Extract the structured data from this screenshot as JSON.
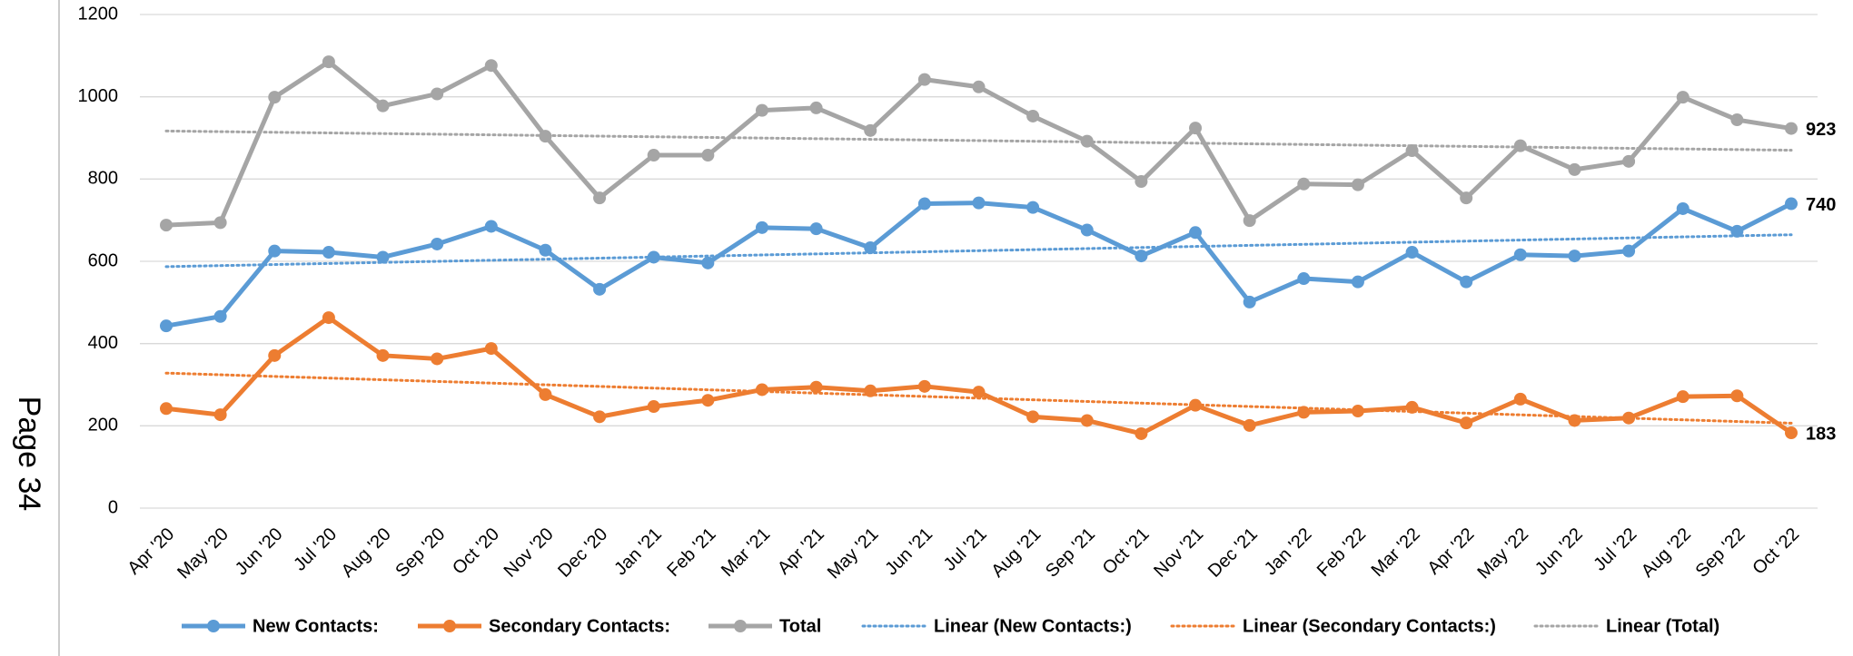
{
  "page_label": "Page 34",
  "chart_data": {
    "type": "line",
    "categories": [
      "Apr '20",
      "May '20",
      "Jun '20",
      "Jul '20",
      "Aug '20",
      "Sep '20",
      "Oct '20",
      "Nov '20",
      "Dec '20",
      "Jan '21",
      "Feb '21",
      "Mar '21",
      "Apr '21",
      "May '21",
      "Jun '21",
      "Jul '21",
      "Aug '21",
      "Sep '21",
      "Oct '21",
      "Nov '21",
      "Dec '21",
      "Jan '22",
      "Feb '22",
      "Mar '22",
      "Apr '22",
      "May '22",
      "Jun '22",
      "Jul '22",
      "Aug '22",
      "Sep '22",
      "Oct '22"
    ],
    "series": [
      {
        "name": "New Contacts:",
        "color": "#5b9bd5",
        "values": [
          443,
          466,
          625,
          622,
          610,
          642,
          685,
          627,
          532,
          610,
          596,
          682,
          679,
          633,
          740,
          742,
          731,
          676,
          613,
          670,
          501,
          558,
          550,
          622,
          550,
          616,
          613,
          625,
          728,
          673,
          740
        ]
      },
      {
        "name": "Secondary Contacts:",
        "color": "#ed7d31",
        "values": [
          242,
          227,
          371,
          463,
          371,
          363,
          388,
          276,
          222,
          247,
          262,
          288,
          294,
          285,
          296,
          282,
          222,
          213,
          181,
          250,
          201,
          233,
          236,
          245,
          207,
          265,
          213,
          219,
          271,
          273,
          183
        ]
      },
      {
        "name": "Total",
        "color": "#a5a5a5",
        "values": [
          688,
          694,
          999,
          1085,
          978,
          1007,
          1076,
          904,
          754,
          858,
          858,
          967,
          973,
          918,
          1042,
          1024,
          953,
          892,
          794,
          924,
          699,
          788,
          786,
          869,
          754,
          881,
          823,
          843,
          999,
          944,
          923
        ]
      }
    ],
    "trendlines": [
      {
        "name": "Linear (New Contacts:)",
        "color": "#5b9bd5",
        "of": 0
      },
      {
        "name": "Linear (Secondary Contacts:)",
        "color": "#ed7d31",
        "of": 1
      },
      {
        "name": "Linear (Total)",
        "color": "#a5a5a5",
        "of": 2
      }
    ],
    "ylim": [
      0,
      1200
    ],
    "yticks": [
      0,
      200,
      400,
      600,
      800,
      1000,
      1200
    ],
    "grid": true
  }
}
